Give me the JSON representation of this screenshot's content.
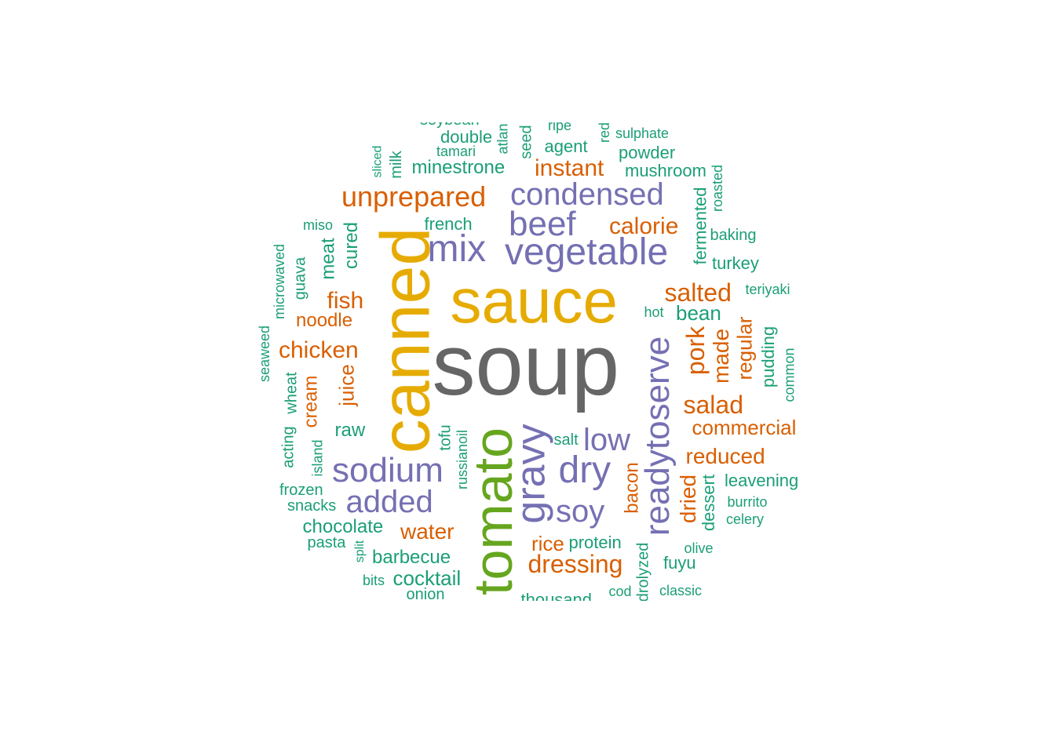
{
  "palette": {
    "dark_gray": "#666666",
    "gold": "#E6AB02",
    "green": "#66A61E",
    "purple": "#7570B3",
    "orange": "#D95F02",
    "teal": "#1B9E77"
  },
  "words": [
    {
      "id": "soup",
      "text": "soup",
      "color": "dark_gray"
    },
    {
      "id": "sauce",
      "text": "sauce",
      "color": "gold"
    },
    {
      "id": "canned",
      "text": "canned",
      "color": "gold"
    },
    {
      "id": "tomato",
      "text": "tomato",
      "color": "green"
    },
    {
      "id": "gravy",
      "text": "gravy",
      "color": "purple"
    },
    {
      "id": "readytoserve",
      "text": "readytoserve",
      "color": "purple"
    },
    {
      "id": "vegetable",
      "text": "vegetable",
      "color": "purple"
    },
    {
      "id": "condensed",
      "text": "condensed",
      "color": "purple"
    },
    {
      "id": "beef",
      "text": "beef",
      "color": "purple"
    },
    {
      "id": "mix",
      "text": "mix",
      "color": "purple"
    },
    {
      "id": "sodium",
      "text": "sodium",
      "color": "purple"
    },
    {
      "id": "dry",
      "text": "dry",
      "color": "purple"
    },
    {
      "id": "added",
      "text": "added",
      "color": "purple"
    },
    {
      "id": "low",
      "text": "low",
      "color": "purple"
    },
    {
      "id": "soy",
      "text": "soy",
      "color": "purple"
    },
    {
      "id": "unprepared",
      "text": "unprepared",
      "color": "orange"
    },
    {
      "id": "instant",
      "text": "instant",
      "color": "orange"
    },
    {
      "id": "calorie",
      "text": "calorie",
      "color": "orange"
    },
    {
      "id": "salted",
      "text": "salted",
      "color": "orange"
    },
    {
      "id": "salad",
      "text": "salad",
      "color": "orange"
    },
    {
      "id": "pork",
      "text": "pork",
      "color": "orange"
    },
    {
      "id": "made",
      "text": "made",
      "color": "orange"
    },
    {
      "id": "regular",
      "text": "regular",
      "color": "orange"
    },
    {
      "id": "commercial",
      "text": "commercial",
      "color": "orange"
    },
    {
      "id": "reduced",
      "text": "reduced",
      "color": "orange"
    },
    {
      "id": "dried",
      "text": "dried",
      "color": "orange"
    },
    {
      "id": "bacon",
      "text": "bacon",
      "color": "orange"
    },
    {
      "id": "dressing",
      "text": "dressing",
      "color": "orange"
    },
    {
      "id": "rice",
      "text": "rice",
      "color": "orange"
    },
    {
      "id": "water",
      "text": "water",
      "color": "orange"
    },
    {
      "id": "chicken",
      "text": "chicken",
      "color": "orange"
    },
    {
      "id": "fish",
      "text": "fish",
      "color": "orange"
    },
    {
      "id": "noodle",
      "text": "noodle",
      "color": "orange"
    },
    {
      "id": "juice",
      "text": "juice",
      "color": "orange"
    },
    {
      "id": "cream",
      "text": "cream",
      "color": "orange"
    },
    {
      "id": "soybean",
      "text": "soybean",
      "color": "teal"
    },
    {
      "id": "double",
      "text": "double",
      "color": "teal"
    },
    {
      "id": "tamari",
      "text": "tamari",
      "color": "teal"
    },
    {
      "id": "atlan",
      "text": "atlan",
      "color": "teal"
    },
    {
      "id": "seed",
      "text": "seed",
      "color": "teal"
    },
    {
      "id": "ripe",
      "text": "ripe",
      "color": "teal"
    },
    {
      "id": "agent",
      "text": "agent",
      "color": "teal"
    },
    {
      "id": "red",
      "text": "red",
      "color": "teal"
    },
    {
      "id": "sulphate",
      "text": "sulphate",
      "color": "teal"
    },
    {
      "id": "powder",
      "text": "powder",
      "color": "teal"
    },
    {
      "id": "mushroom",
      "text": "mushroom",
      "color": "teal"
    },
    {
      "id": "roasted",
      "text": "roasted",
      "color": "teal"
    },
    {
      "id": "fermented",
      "text": "fermented",
      "color": "teal"
    },
    {
      "id": "baking",
      "text": "baking",
      "color": "teal"
    },
    {
      "id": "turkey",
      "text": "turkey",
      "color": "teal"
    },
    {
      "id": "teriyaki",
      "text": "teriyaki",
      "color": "teal"
    },
    {
      "id": "hot",
      "text": "hot",
      "color": "teal"
    },
    {
      "id": "bean",
      "text": "bean",
      "color": "teal"
    },
    {
      "id": "pudding",
      "text": "pudding",
      "color": "teal"
    },
    {
      "id": "common",
      "text": "common",
      "color": "teal"
    },
    {
      "id": "leavening",
      "text": "leavening",
      "color": "teal"
    },
    {
      "id": "burrito",
      "text": "burrito",
      "color": "teal"
    },
    {
      "id": "celery",
      "text": "celery",
      "color": "teal"
    },
    {
      "id": "dessert",
      "text": "dessert",
      "color": "teal"
    },
    {
      "id": "olive",
      "text": "olive",
      "color": "teal"
    },
    {
      "id": "fuyu",
      "text": "fuyu",
      "color": "teal"
    },
    {
      "id": "classic",
      "text": "classic",
      "color": "teal"
    },
    {
      "id": "hydrolyzed",
      "text": "hydrolyzed",
      "color": "teal"
    },
    {
      "id": "cod",
      "text": "cod",
      "color": "teal"
    },
    {
      "id": "thousand",
      "text": "thousand",
      "color": "teal"
    },
    {
      "id": "protein",
      "text": "protein",
      "color": "teal"
    },
    {
      "id": "salt",
      "text": "salt",
      "color": "teal"
    },
    {
      "id": "russianoil",
      "text": "russianoil",
      "color": "teal"
    },
    {
      "id": "tofu",
      "text": "tofu",
      "color": "teal"
    },
    {
      "id": "raw",
      "text": "raw",
      "color": "teal"
    },
    {
      "id": "cocktail",
      "text": "cocktail",
      "color": "teal"
    },
    {
      "id": "onion",
      "text": "onion",
      "color": "teal"
    },
    {
      "id": "bits",
      "text": "bits",
      "color": "teal"
    },
    {
      "id": "barbecue",
      "text": "barbecue",
      "color": "teal"
    },
    {
      "id": "split",
      "text": "split",
      "color": "teal"
    },
    {
      "id": "pasta",
      "text": "pasta",
      "color": "teal"
    },
    {
      "id": "chocolate",
      "text": "chocolate",
      "color": "teal"
    },
    {
      "id": "snacks",
      "text": "snacks",
      "color": "teal"
    },
    {
      "id": "frozen",
      "text": "frozen",
      "color": "teal"
    },
    {
      "id": "island",
      "text": "island",
      "color": "teal"
    },
    {
      "id": "acting",
      "text": "acting",
      "color": "teal"
    },
    {
      "id": "wheat",
      "text": "wheat",
      "color": "teal"
    },
    {
      "id": "seaweed",
      "text": "seaweed",
      "color": "teal"
    },
    {
      "id": "microwaved",
      "text": "microwaved",
      "color": "teal"
    },
    {
      "id": "guava",
      "text": "guava",
      "color": "teal"
    },
    {
      "id": "meat",
      "text": "meat",
      "color": "teal"
    },
    {
      "id": "cured",
      "text": "cured",
      "color": "teal"
    },
    {
      "id": "miso",
      "text": "miso",
      "color": "teal"
    },
    {
      "id": "french",
      "text": "french",
      "color": "teal"
    },
    {
      "id": "minestrone",
      "text": "minestrone",
      "color": "teal"
    },
    {
      "id": "milk",
      "text": "milk",
      "color": "teal"
    },
    {
      "id": "sliced",
      "text": "sliced",
      "color": "teal"
    }
  ]
}
